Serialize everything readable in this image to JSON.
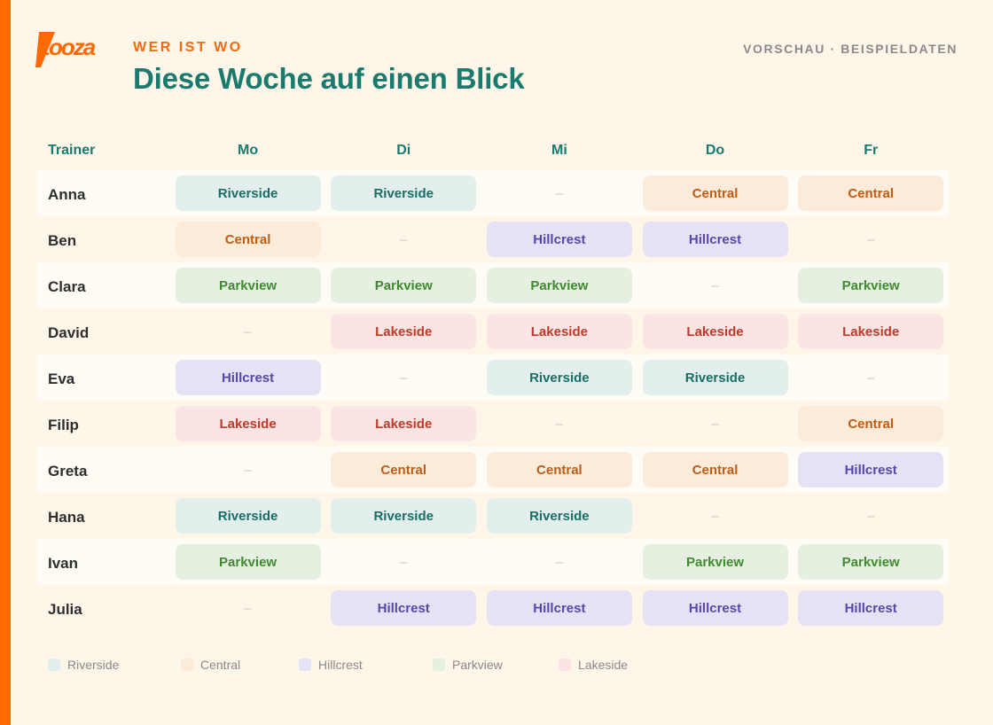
{
  "brand": {
    "logo_text": "zooza",
    "accent": "#ff6a00"
  },
  "header": {
    "eyebrow": "WER IST WO",
    "title": "Diese Woche auf einen Blick",
    "preview": "VORSCHAU · BEISPIELDATEN"
  },
  "table": {
    "trainer_header": "Trainer",
    "days": [
      "Mo",
      "Di",
      "Mi",
      "Do",
      "Fr"
    ],
    "empty_symbol": "–",
    "rows": [
      {
        "name": "Anna",
        "cells": [
          "Riverside",
          "Riverside",
          null,
          "Central",
          "Central"
        ]
      },
      {
        "name": "Ben",
        "cells": [
          "Central",
          null,
          "Hillcrest",
          "Hillcrest",
          null
        ]
      },
      {
        "name": "Clara",
        "cells": [
          "Parkview",
          "Parkview",
          "Parkview",
          null,
          "Parkview"
        ]
      },
      {
        "name": "David",
        "cells": [
          null,
          "Lakeside",
          "Lakeside",
          "Lakeside",
          "Lakeside"
        ]
      },
      {
        "name": "Eva",
        "cells": [
          "Hillcrest",
          null,
          "Riverside",
          "Riverside",
          null
        ]
      },
      {
        "name": "Filip",
        "cells": [
          "Lakeside",
          "Lakeside",
          null,
          null,
          "Central"
        ]
      },
      {
        "name": "Greta",
        "cells": [
          null,
          "Central",
          "Central",
          "Central",
          "Hillcrest"
        ]
      },
      {
        "name": "Hana",
        "cells": [
          "Riverside",
          "Riverside",
          "Riverside",
          null,
          null
        ]
      },
      {
        "name": "Ivan",
        "cells": [
          "Parkview",
          null,
          null,
          "Parkview",
          "Parkview"
        ]
      },
      {
        "name": "Julia",
        "cells": [
          null,
          "Hillcrest",
          "Hillcrest",
          "Hillcrest",
          "Hillcrest"
        ]
      }
    ]
  },
  "legend": [
    {
      "label": "Riverside",
      "color": "#e3efec"
    },
    {
      "label": "Central",
      "color": "#fdebda"
    },
    {
      "label": "Hillcrest",
      "color": "#e6e2f6"
    },
    {
      "label": "Parkview",
      "color": "#e5f0e1"
    },
    {
      "label": "Lakeside",
      "color": "#fbe4e4"
    }
  ]
}
